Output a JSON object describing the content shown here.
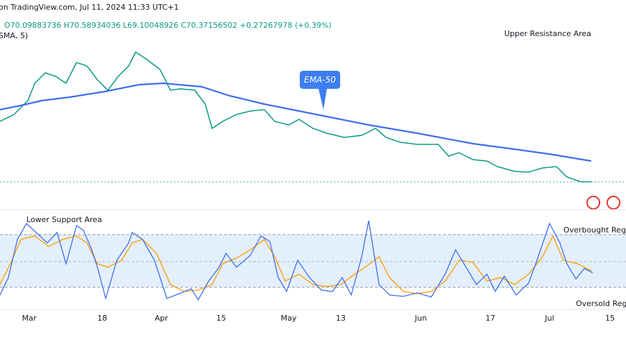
{
  "header": {
    "source": "on TradingView.com, Jul 11, 2024 11:33 UTC+1",
    "ohlc": "O70.09883736 H70.58934036 L69.10048926 C70.37156502 +0.27267978 (+0.39%)",
    "indicator": "SMA, 5)"
  },
  "annotations": {
    "upper": "Upper Resistance Area",
    "ema": "EMA-50",
    "lower": "Lower Support Area",
    "overbought": "Overbought Regi",
    "oversold": "Oversold Regi"
  },
  "x_axis": [
    "Mar",
    "18",
    "Apr",
    "15",
    "May",
    "13",
    "Jun",
    "17",
    "Jul",
    "15"
  ]
}
